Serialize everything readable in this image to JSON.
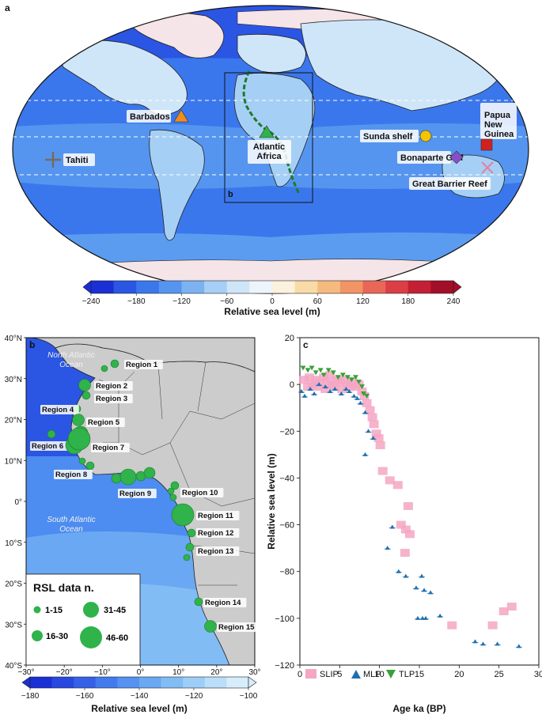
{
  "panels": {
    "a": "a",
    "b": "b",
    "c": "c",
    "inset_box": "b"
  },
  "map_a": {
    "sites": [
      {
        "name": "Barbados",
        "marker": "triangle",
        "color": "#f08c1e"
      },
      {
        "name": "Atlantic\nAfrica",
        "marker": "triangle",
        "color": "#2fb34a"
      },
      {
        "name": "Tahiti",
        "marker": "plus",
        "color": "#7a6a5a"
      },
      {
        "name": "Sunda shelf",
        "marker": "circle",
        "color": "#f5c400"
      },
      {
        "name": "Papua\nNew\nGuinea",
        "marker": "square",
        "color": "#d02020"
      },
      {
        "name": "Bonaparte Gulf",
        "marker": "diamond",
        "color": "#8a4fc8"
      },
      {
        "name": "Great Barrier Reef",
        "marker": "x",
        "color": "#e77fa0"
      }
    ],
    "colorbar": {
      "ticks": [
        "−240",
        "−180",
        "−120",
        "−60",
        "0",
        "60",
        "120",
        "180",
        "240"
      ],
      "label": "Relative sea level (m)",
      "colors": [
        "#1b2fd6",
        "#2b55e3",
        "#3b77ec",
        "#5595ef",
        "#7cb2f1",
        "#a6cff5",
        "#cfe6f8",
        "#eef4fb",
        "#fbf2dd",
        "#f8dba6",
        "#f5bb7e",
        "#f19466",
        "#e96757",
        "#dc3e45",
        "#c51f35",
        "#a30e29"
      ]
    }
  },
  "map_b": {
    "lat_ticks": [
      "40°N",
      "30°N",
      "20°N",
      "10°N",
      "0°",
      "10°S",
      "20°S",
      "30°S",
      "40°S"
    ],
    "lon_ticks": [
      "−30°",
      "−20°",
      "−10°",
      "0°",
      "10°",
      "20°",
      "30°"
    ],
    "ocean_labels": [
      "North Atlantic\nOcean",
      "South Atlantic\nOcean"
    ],
    "regions": [
      {
        "name": "Region 1",
        "size": "1-15"
      },
      {
        "name": "Region 2",
        "size": "16-30"
      },
      {
        "name": "Region 3",
        "size": "1-15"
      },
      {
        "name": "Region 4",
        "size": "1-15"
      },
      {
        "name": "Region 5",
        "size": "16-30"
      },
      {
        "name": "Region 6",
        "size": "1-15"
      },
      {
        "name": "Region 7",
        "size": "46-60"
      },
      {
        "name": "Region 8",
        "size": "1-15"
      },
      {
        "name": "Region 9",
        "size": "31-45"
      },
      {
        "name": "Region 10",
        "size": "1-15"
      },
      {
        "name": "Region 11",
        "size": "46-60"
      },
      {
        "name": "Region 12",
        "size": "1-15"
      },
      {
        "name": "Region 13",
        "size": "1-15"
      },
      {
        "name": "Region 14",
        "size": "1-15"
      },
      {
        "name": "Region 15",
        "size": "16-30"
      }
    ],
    "legend": {
      "title": "RSL data n.",
      "classes": [
        "1-15",
        "16-30",
        "31-45",
        "46-60"
      ]
    },
    "colorbar": {
      "ticks": [
        "−180",
        "−160",
        "−140",
        "−120",
        "−100"
      ],
      "label": "Relative sea level (m)",
      "colors": [
        "#1b2fd6",
        "#2848e0",
        "#3561e8",
        "#437aee",
        "#5592f1",
        "#6aa8f3",
        "#82bcf5",
        "#9dcef7",
        "#badef9",
        "#d8edfb"
      ]
    }
  },
  "chart_data": {
    "type": "scatter",
    "xlabel": "Age ka (BP)",
    "ylabel": "Relative sea level (m)",
    "xlim": [
      0,
      30
    ],
    "ylim": [
      -120,
      20
    ],
    "xticks": [
      0,
      5,
      10,
      15,
      20,
      25,
      30
    ],
    "yticks": [
      20,
      0,
      -20,
      -40,
      -60,
      -80,
      -100,
      -120
    ],
    "legend_position": "bottom-left",
    "series": [
      {
        "name": "SLIP",
        "marker": "square",
        "color": "#f4a6c3",
        "points": [
          {
            "x": 0.5,
            "y": 2
          },
          {
            "x": 1,
            "y": -1
          },
          {
            "x": 1.2,
            "y": 3
          },
          {
            "x": 1.6,
            "y": 0
          },
          {
            "x": 2,
            "y": 2
          },
          {
            "x": 2.2,
            "y": -1
          },
          {
            "x": 2.5,
            "y": 1
          },
          {
            "x": 3,
            "y": 3
          },
          {
            "x": 3.2,
            "y": -2
          },
          {
            "x": 3.5,
            "y": 1
          },
          {
            "x": 3.8,
            "y": 4
          },
          {
            "x": 4,
            "y": 0
          },
          {
            "x": 4.3,
            "y": -1
          },
          {
            "x": 4.6,
            "y": 2
          },
          {
            "x": 5,
            "y": 1
          },
          {
            "x": 5.3,
            "y": -2
          },
          {
            "x": 5.6,
            "y": 2
          },
          {
            "x": 6,
            "y": 0
          },
          {
            "x": 6.3,
            "y": -1
          },
          {
            "x": 6.6,
            "y": 1
          },
          {
            "x": 7,
            "y": -1
          },
          {
            "x": 7.4,
            "y": 0
          },
          {
            "x": 7.8,
            "y": -3
          },
          {
            "x": 8.1,
            "y": -5
          },
          {
            "x": 8.4,
            "y": -8
          },
          {
            "x": 8.8,
            "y": -11
          },
          {
            "x": 9.1,
            "y": -14
          },
          {
            "x": 9.3,
            "y": -17
          },
          {
            "x": 9.6,
            "y": -21
          },
          {
            "x": 9.9,
            "y": -23
          },
          {
            "x": 10.1,
            "y": -26
          },
          {
            "x": 10.4,
            "y": -37
          },
          {
            "x": 11.3,
            "y": -41
          },
          {
            "x": 12.3,
            "y": -43
          },
          {
            "x": 13.6,
            "y": -52
          },
          {
            "x": 12.7,
            "y": -60
          },
          {
            "x": 13.3,
            "y": -62
          },
          {
            "x": 13.8,
            "y": -64
          },
          {
            "x": 13.2,
            "y": -72
          },
          {
            "x": 19.1,
            "y": -103
          },
          {
            "x": 24.2,
            "y": -103
          },
          {
            "x": 25.6,
            "y": -97
          },
          {
            "x": 26.6,
            "y": -95
          }
        ]
      },
      {
        "name": "MLP",
        "marker": "triangle-up",
        "color": "#1f6fb0",
        "points": [
          {
            "x": 0.2,
            "y": -3
          },
          {
            "x": 0.6,
            "y": -5
          },
          {
            "x": 1.3,
            "y": -2
          },
          {
            "x": 1.8,
            "y": -4
          },
          {
            "x": 2.4,
            "y": 0
          },
          {
            "x": 3.2,
            "y": -1
          },
          {
            "x": 3.8,
            "y": -3
          },
          {
            "x": 4.4,
            "y": -2
          },
          {
            "x": 5.2,
            "y": -4
          },
          {
            "x": 5.8,
            "y": -2
          },
          {
            "x": 6.2,
            "y": -3
          },
          {
            "x": 6.8,
            "y": -5
          },
          {
            "x": 7.2,
            "y": -6
          },
          {
            "x": 7.6,
            "y": -8
          },
          {
            "x": 8.2,
            "y": -12
          },
          {
            "x": 8.6,
            "y": -20
          },
          {
            "x": 8.2,
            "y": -30
          },
          {
            "x": 9.2,
            "y": -23
          },
          {
            "x": 11.0,
            "y": -70
          },
          {
            "x": 11.6,
            "y": -61
          },
          {
            "x": 12.4,
            "y": -80
          },
          {
            "x": 13.3,
            "y": -82
          },
          {
            "x": 14.6,
            "y": -87
          },
          {
            "x": 15.3,
            "y": -82
          },
          {
            "x": 15.6,
            "y": -88
          },
          {
            "x": 16.4,
            "y": -89
          },
          {
            "x": 14.8,
            "y": -100
          },
          {
            "x": 15.4,
            "y": -100
          },
          {
            "x": 15.8,
            "y": -100
          },
          {
            "x": 17.6,
            "y": -99
          },
          {
            "x": 22.0,
            "y": -110
          },
          {
            "x": 23.0,
            "y": -111
          },
          {
            "x": 24.8,
            "y": -111
          },
          {
            "x": 27.5,
            "y": -112
          }
        ]
      },
      {
        "name": "TLP",
        "marker": "triangle-down",
        "color": "#3aa03a",
        "points": [
          {
            "x": 0.4,
            "y": 7
          },
          {
            "x": 1.0,
            "y": 6
          },
          {
            "x": 1.5,
            "y": 7
          },
          {
            "x": 2.0,
            "y": 5
          },
          {
            "x": 2.6,
            "y": 6
          },
          {
            "x": 3.0,
            "y": 4
          },
          {
            "x": 3.6,
            "y": 6
          },
          {
            "x": 4.2,
            "y": 5
          },
          {
            "x": 4.8,
            "y": 3
          },
          {
            "x": 5.4,
            "y": 4
          },
          {
            "x": 6.0,
            "y": 3
          },
          {
            "x": 6.5,
            "y": 2
          },
          {
            "x": 7.0,
            "y": 3
          },
          {
            "x": 7.4,
            "y": 1
          },
          {
            "x": 7.8,
            "y": -1
          },
          {
            "x": 8.0,
            "y": -4
          },
          {
            "x": 8.4,
            "y": -5
          }
        ]
      }
    ]
  }
}
